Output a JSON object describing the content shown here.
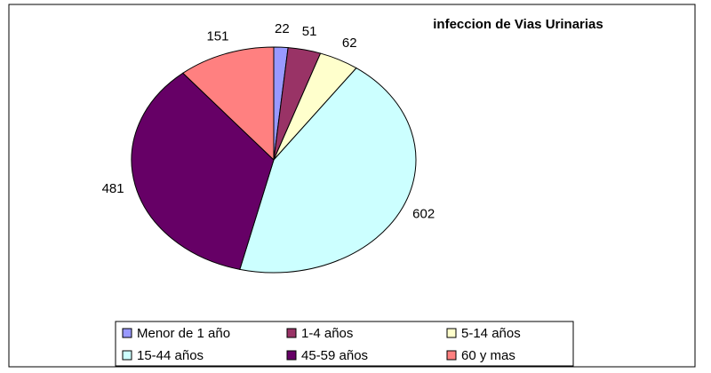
{
  "chart_data": {
    "type": "pie",
    "title": "infeccion de Vias Urinarias",
    "categories": [
      "Menor de 1 año",
      "1-4 años",
      "5-14 años",
      "15-44 años",
      "45-59 años",
      "60 y mas"
    ],
    "values": [
      22,
      51,
      62,
      602,
      481,
      151
    ],
    "colors": [
      "#9999ff",
      "#993366",
      "#ffffcc",
      "#ccffff",
      "#660066",
      "#ff8080"
    ],
    "legend": "bottom"
  }
}
